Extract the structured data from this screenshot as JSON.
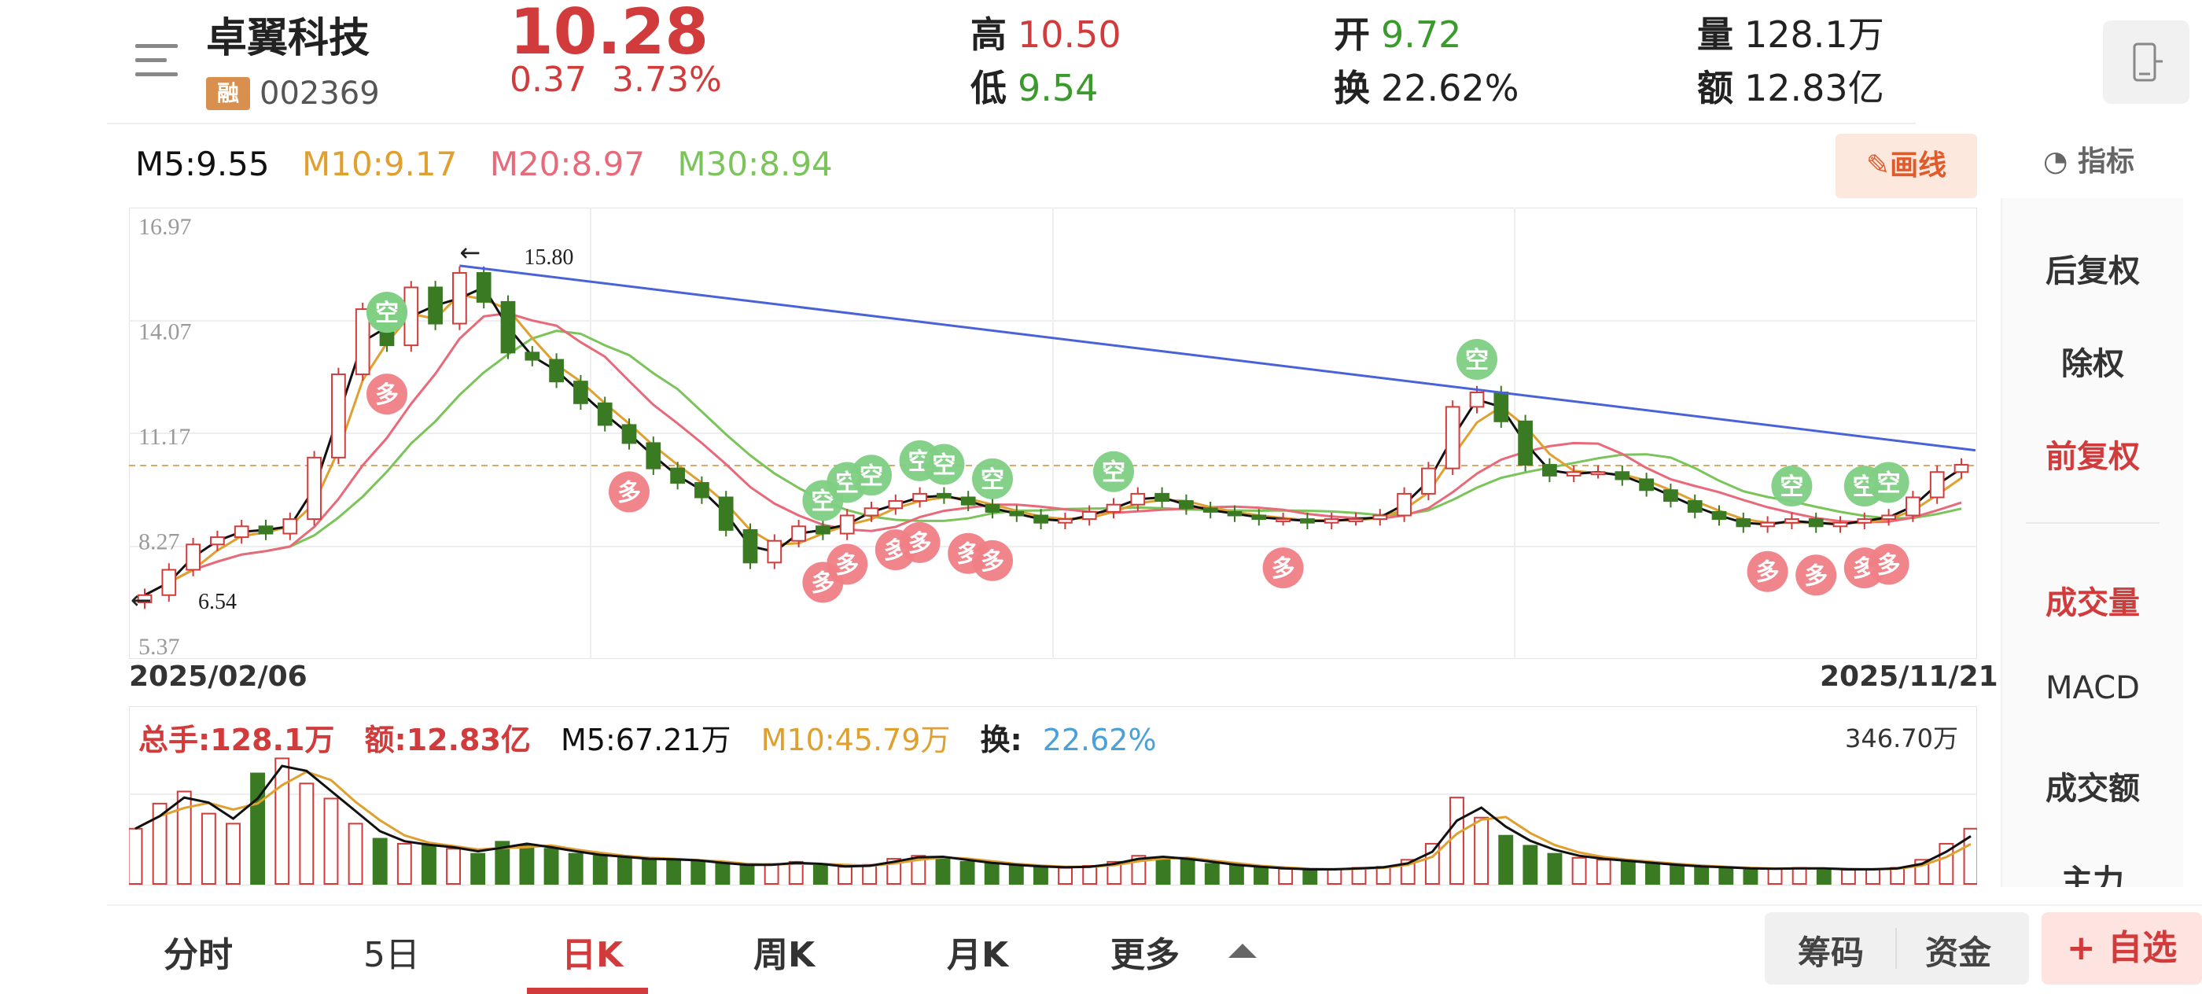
{
  "header": {
    "stock_name": "卓翼科技",
    "margin_badge": "融",
    "stock_code": "002369",
    "price": "10.28",
    "change": "0.37",
    "change_pct": "3.73%",
    "high_label": "高",
    "high": "10.50",
    "low_label": "低",
    "low": "9.54",
    "open_label": "开",
    "open": "9.72",
    "turnover_label": "换",
    "turnover": "22.62%",
    "volume_label": "量",
    "volume": "128.1万",
    "amount_label": "额",
    "amount": "12.83亿"
  },
  "ma": {
    "m5": "M5:9.55",
    "m10": "M10:9.17",
    "m20": "M20:8.97",
    "m30": "M30:8.94"
  },
  "tools": {
    "draw": "画线",
    "indicator": "指标"
  },
  "colors": {
    "up": "#d23b3b",
    "down": "#3a7a22",
    "ma5": "#111111",
    "ma10": "#e0a030",
    "ma20": "#e86a7a",
    "ma30": "#7ac45a",
    "trendline": "#4a62d8"
  },
  "chart_data": {
    "type": "candlestick",
    "y_ticks": [
      "16.97",
      "14.07",
      "11.17",
      "8.27",
      "5.37"
    ],
    "ylim": [
      5.37,
      16.97
    ],
    "date_start": "2025/02/06",
    "date_end": "2025/11/21",
    "annotations": {
      "high": "15.80",
      "low": "6.54",
      "high_arrow": "←",
      "low_arrow": "←"
    },
    "signal_labels": {
      "sell": "空",
      "buy": "多"
    },
    "close": [
      6.7,
      7.4,
      8.1,
      8.3,
      8.6,
      8.4,
      8.8,
      10.5,
      12.8,
      14.6,
      13.6,
      15.2,
      14.2,
      15.6,
      14.8,
      13.4,
      13.2,
      12.6,
      12.0,
      11.4,
      10.9,
      10.2,
      9.8,
      9.4,
      8.5,
      7.6,
      8.2,
      8.6,
      8.4,
      8.9,
      9.1,
      9.3,
      9.5,
      9.4,
      9.2,
      9.0,
      8.9,
      8.7,
      8.8,
      9.0,
      9.2,
      9.5,
      9.3,
      9.1,
      9.0,
      8.9,
      8.8,
      8.8,
      8.7,
      8.8,
      8.8,
      8.9,
      9.5,
      10.2,
      11.9,
      12.3,
      11.5,
      10.3,
      10.0,
      10.1,
      10.1,
      9.9,
      9.6,
      9.3,
      9.0,
      8.8,
      8.6,
      8.7,
      8.8,
      8.6,
      8.7,
      8.8,
      8.9,
      9.4,
      10.1,
      10.3
    ],
    "sell_signals_x": [
      0.128,
      0.138,
      0.368,
      0.385,
      0.396,
      0.426,
      0.438,
      0.468,
      0.53,
      0.731,
      0.902,
      0.944,
      0.964
    ],
    "buy_signals_x": [
      0.134,
      0.263,
      0.374,
      0.39,
      0.418,
      0.43,
      0.45,
      0.47,
      0.626,
      0.889,
      0.92,
      0.944,
      0.963
    ],
    "volume": {
      "legend_total": "总手:128.1万",
      "legend_amount": "额:12.83亿",
      "legend_m5": "M5:67.21万",
      "legend_m10": "M10:45.79万",
      "legend_turnover_label": "换:",
      "legend_turnover": "22.62%",
      "max": "346.70万",
      "bars": [
        55,
        80,
        92,
        70,
        60,
        110,
        125,
        100,
        85,
        60,
        45,
        40,
        38,
        35,
        30,
        42,
        38,
        35,
        30,
        28,
        26,
        24,
        25,
        22,
        20,
        18,
        20,
        22,
        18,
        17,
        19,
        25,
        28,
        26,
        22,
        20,
        18,
        17,
        16,
        18,
        22,
        28,
        26,
        24,
        20,
        18,
        16,
        15,
        14,
        15,
        16,
        17,
        24,
        40,
        86,
        66,
        48,
        38,
        30,
        26,
        24,
        22,
        20,
        18,
        17,
        16,
        15,
        15,
        16,
        15,
        14,
        15,
        16,
        24,
        40,
        55
      ]
    }
  },
  "side_panel": {
    "items": [
      "后复权",
      "除权",
      "前复权",
      "成交量",
      "MACD",
      "成交额",
      "主力"
    ]
  },
  "tabs": [
    "分时",
    "5日",
    "日K",
    "周K",
    "月K",
    "更多"
  ],
  "actions": {
    "chips": "筹码",
    "funds": "资金",
    "watchlist": "+ 自选"
  }
}
